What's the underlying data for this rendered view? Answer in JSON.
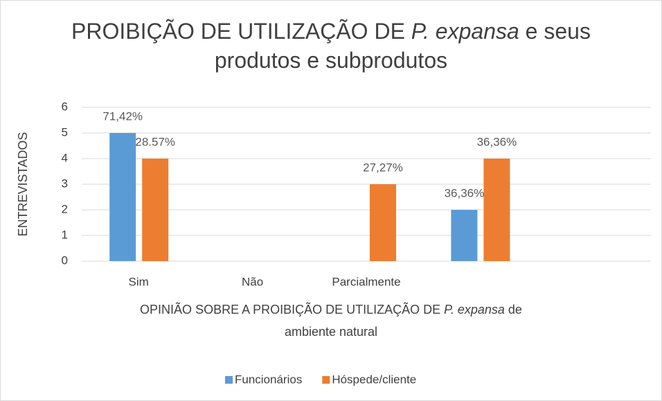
{
  "chart_data": {
    "type": "bar",
    "title": [
      [
        {
          "text": "PROIBIÇÃO DE UTILIZAÇÃO DE "
        },
        {
          "text": "P. expansa",
          "italic": true
        },
        {
          "text": " e seus"
        }
      ],
      [
        {
          "text": "produtos e subprodutos"
        }
      ]
    ],
    "x_label": [
      [
        {
          "text": "OPINIÃO SOBRE A PROIBIÇÃO DE UTILIZAÇÃO DE "
        },
        {
          "text": "P. expansa",
          "italic": true
        },
        {
          "text": " de"
        }
      ],
      [
        {
          "text": "ambiente natural"
        }
      ]
    ],
    "y_label": "ENTREVISTADOS",
    "categories": [
      "Sim",
      "Não",
      "Parcialmente",
      null,
      null
    ],
    "series": [
      {
        "name": "Funcionários",
        "color": "#5b9bd5",
        "values": [
          5,
          null,
          null,
          2,
          null
        ],
        "labels": [
          "71,42%",
          null,
          null,
          "36,36%",
          null
        ]
      },
      {
        "name": "Hóspede/cliente",
        "color": "#ed7d31",
        "values": [
          4,
          null,
          3,
          4,
          null
        ],
        "labels": [
          "28.57%",
          null,
          "27,27%",
          "36,36%",
          null
        ]
      }
    ],
    "ylim": [
      0,
      6
    ],
    "yticks": [
      0,
      1,
      2,
      3,
      4,
      5,
      6
    ],
    "grid": true,
    "legend": "bottom"
  }
}
